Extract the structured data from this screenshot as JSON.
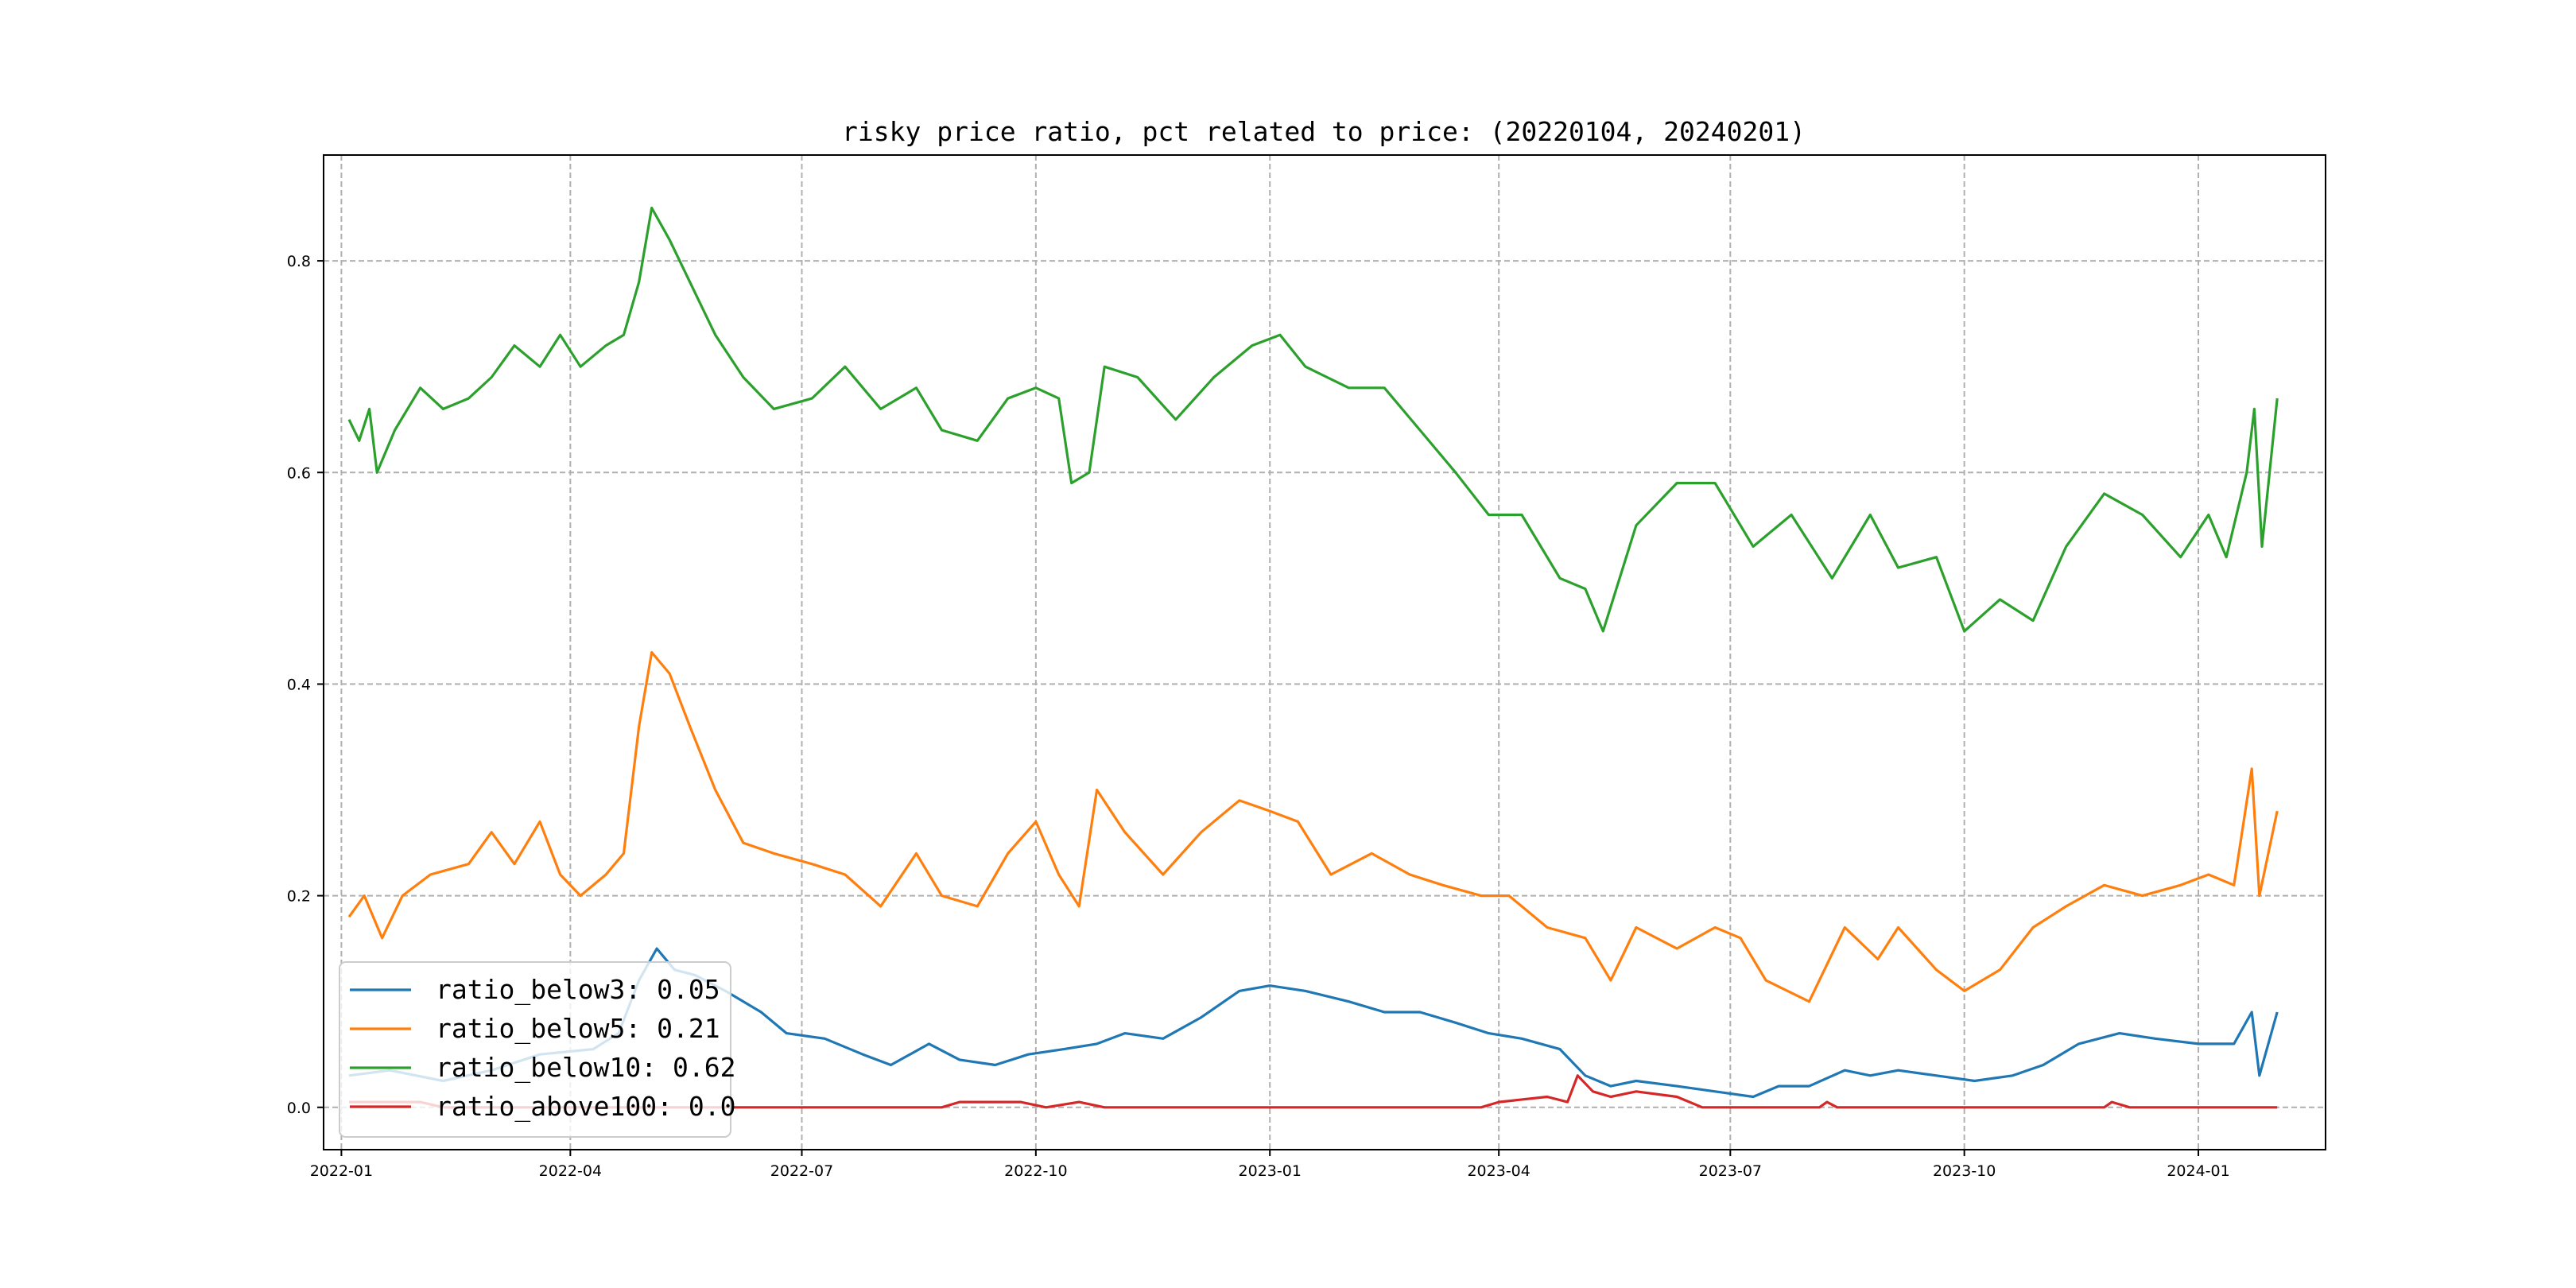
{
  "chart_data": {
    "type": "line",
    "title": "risky price ratio, pct related to price: (20220104, 20240201)",
    "xlabel": "",
    "ylabel": "",
    "x_range": [
      "2021-12-25",
      "2024-02-20"
    ],
    "ylim": [
      -0.04,
      0.9
    ],
    "x_ticks": [
      {
        "date": "2022-01-01",
        "label": "2022-01"
      },
      {
        "date": "2022-04-01",
        "label": "2022-04"
      },
      {
        "date": "2022-07-01",
        "label": "2022-07"
      },
      {
        "date": "2022-10-01",
        "label": "2022-10"
      },
      {
        "date": "2023-01-01",
        "label": "2023-01"
      },
      {
        "date": "2023-04-01",
        "label": "2023-04"
      },
      {
        "date": "2023-07-01",
        "label": "2023-07"
      },
      {
        "date": "2023-10-01",
        "label": "2023-10"
      },
      {
        "date": "2024-01-01",
        "label": "2024-01"
      }
    ],
    "y_ticks": [
      {
        "value": 0.0,
        "label": "0.0"
      },
      {
        "value": 0.2,
        "label": "0.2"
      },
      {
        "value": 0.4,
        "label": "0.4"
      },
      {
        "value": 0.6,
        "label": "0.6"
      },
      {
        "value": 0.8,
        "label": "0.8"
      }
    ],
    "grid": true,
    "legend_position": "bottom-left",
    "series": [
      {
        "name": "ratio_below3: 0.05",
        "color": "#1f77b4",
        "points": [
          [
            "2022-01-04",
            0.03
          ],
          [
            "2022-01-20",
            0.035
          ],
          [
            "2022-02-10",
            0.025
          ],
          [
            "2022-03-01",
            0.035
          ],
          [
            "2022-03-20",
            0.05
          ],
          [
            "2022-04-10",
            0.055
          ],
          [
            "2022-04-20",
            0.07
          ],
          [
            "2022-04-28",
            0.12
          ],
          [
            "2022-05-05",
            0.15
          ],
          [
            "2022-05-12",
            0.13
          ],
          [
            "2022-05-20",
            0.125
          ],
          [
            "2022-06-01",
            0.11
          ],
          [
            "2022-06-15",
            0.09
          ],
          [
            "2022-06-25",
            0.07
          ],
          [
            "2022-07-10",
            0.065
          ],
          [
            "2022-07-25",
            0.05
          ],
          [
            "2022-08-05",
            0.04
          ],
          [
            "2022-08-20",
            0.06
          ],
          [
            "2022-09-01",
            0.045
          ],
          [
            "2022-09-15",
            0.04
          ],
          [
            "2022-09-28",
            0.05
          ],
          [
            "2022-10-12",
            0.055
          ],
          [
            "2022-10-25",
            0.06
          ],
          [
            "2022-11-05",
            0.07
          ],
          [
            "2022-11-20",
            0.065
          ],
          [
            "2022-12-05",
            0.085
          ],
          [
            "2022-12-20",
            0.11
          ],
          [
            "2023-01-01",
            0.115
          ],
          [
            "2023-01-15",
            0.11
          ],
          [
            "2023-02-01",
            0.1
          ],
          [
            "2023-02-15",
            0.09
          ],
          [
            "2023-03-01",
            0.09
          ],
          [
            "2023-03-15",
            0.08
          ],
          [
            "2023-03-28",
            0.07
          ],
          [
            "2023-04-10",
            0.065
          ],
          [
            "2023-04-25",
            0.055
          ],
          [
            "2023-05-05",
            0.03
          ],
          [
            "2023-05-15",
            0.02
          ],
          [
            "2023-05-25",
            0.025
          ],
          [
            "2023-06-10",
            0.02
          ],
          [
            "2023-06-25",
            0.015
          ],
          [
            "2023-07-10",
            0.01
          ],
          [
            "2023-07-20",
            0.02
          ],
          [
            "2023-08-01",
            0.02
          ],
          [
            "2023-08-15",
            0.035
          ],
          [
            "2023-08-25",
            0.03
          ],
          [
            "2023-09-05",
            0.035
          ],
          [
            "2023-09-20",
            0.03
          ],
          [
            "2023-10-05",
            0.025
          ],
          [
            "2023-10-20",
            0.03
          ],
          [
            "2023-11-01",
            0.04
          ],
          [
            "2023-11-15",
            0.06
          ],
          [
            "2023-12-01",
            0.07
          ],
          [
            "2023-12-15",
            0.065
          ],
          [
            "2024-01-01",
            0.06
          ],
          [
            "2024-01-15",
            0.06
          ],
          [
            "2024-01-22",
            0.09
          ],
          [
            "2024-01-25",
            0.03
          ],
          [
            "2024-02-01",
            0.09
          ]
        ]
      },
      {
        "name": "ratio_below5: 0.21",
        "color": "#ff7f0e",
        "points": [
          [
            "2022-01-04",
            0.18
          ],
          [
            "2022-01-10",
            0.2
          ],
          [
            "2022-01-17",
            0.16
          ],
          [
            "2022-01-25",
            0.2
          ],
          [
            "2022-02-05",
            0.22
          ],
          [
            "2022-02-20",
            0.23
          ],
          [
            "2022-03-01",
            0.26
          ],
          [
            "2022-03-10",
            0.23
          ],
          [
            "2022-03-20",
            0.27
          ],
          [
            "2022-03-28",
            0.22
          ],
          [
            "2022-04-05",
            0.2
          ],
          [
            "2022-04-15",
            0.22
          ],
          [
            "2022-04-22",
            0.24
          ],
          [
            "2022-04-28",
            0.36
          ],
          [
            "2022-05-03",
            0.43
          ],
          [
            "2022-05-10",
            0.41
          ],
          [
            "2022-05-18",
            0.36
          ],
          [
            "2022-05-28",
            0.3
          ],
          [
            "2022-06-08",
            0.25
          ],
          [
            "2022-06-20",
            0.24
          ],
          [
            "2022-07-05",
            0.23
          ],
          [
            "2022-07-18",
            0.22
          ],
          [
            "2022-08-01",
            0.19
          ],
          [
            "2022-08-15",
            0.24
          ],
          [
            "2022-08-25",
            0.2
          ],
          [
            "2022-09-08",
            0.19
          ],
          [
            "2022-09-20",
            0.24
          ],
          [
            "2022-10-01",
            0.27
          ],
          [
            "2022-10-10",
            0.22
          ],
          [
            "2022-10-18",
            0.19
          ],
          [
            "2022-10-25",
            0.3
          ],
          [
            "2022-11-05",
            0.26
          ],
          [
            "2022-11-20",
            0.22
          ],
          [
            "2022-12-05",
            0.26
          ],
          [
            "2022-12-20",
            0.29
          ],
          [
            "2023-01-01",
            0.28
          ],
          [
            "2023-01-12",
            0.27
          ],
          [
            "2023-01-25",
            0.22
          ],
          [
            "2023-02-10",
            0.24
          ],
          [
            "2023-02-25",
            0.22
          ],
          [
            "2023-03-10",
            0.21
          ],
          [
            "2023-03-25",
            0.2
          ],
          [
            "2023-04-05",
            0.2
          ],
          [
            "2023-04-20",
            0.17
          ],
          [
            "2023-05-05",
            0.16
          ],
          [
            "2023-05-15",
            0.12
          ],
          [
            "2023-05-25",
            0.17
          ],
          [
            "2023-06-10",
            0.15
          ],
          [
            "2023-06-25",
            0.17
          ],
          [
            "2023-07-05",
            0.16
          ],
          [
            "2023-07-15",
            0.12
          ],
          [
            "2023-08-01",
            0.1
          ],
          [
            "2023-08-15",
            0.17
          ],
          [
            "2023-08-28",
            0.14
          ],
          [
            "2023-09-05",
            0.17
          ],
          [
            "2023-09-20",
            0.13
          ],
          [
            "2023-10-01",
            0.11
          ],
          [
            "2023-10-15",
            0.13
          ],
          [
            "2023-10-28",
            0.17
          ],
          [
            "2023-11-10",
            0.19
          ],
          [
            "2023-11-25",
            0.21
          ],
          [
            "2023-12-10",
            0.2
          ],
          [
            "2023-12-25",
            0.21
          ],
          [
            "2024-01-05",
            0.22
          ],
          [
            "2024-01-15",
            0.21
          ],
          [
            "2024-01-22",
            0.32
          ],
          [
            "2024-01-25",
            0.2
          ],
          [
            "2024-02-01",
            0.28
          ]
        ]
      },
      {
        "name": "ratio_below10: 0.62",
        "color": "#2ca02c",
        "points": [
          [
            "2022-01-04",
            0.65
          ],
          [
            "2022-01-08",
            0.63
          ],
          [
            "2022-01-12",
            0.66
          ],
          [
            "2022-01-15",
            0.6
          ],
          [
            "2022-01-22",
            0.64
          ],
          [
            "2022-02-01",
            0.68
          ],
          [
            "2022-02-10",
            0.66
          ],
          [
            "2022-02-20",
            0.67
          ],
          [
            "2022-03-01",
            0.69
          ],
          [
            "2022-03-10",
            0.72
          ],
          [
            "2022-03-20",
            0.7
          ],
          [
            "2022-03-28",
            0.73
          ],
          [
            "2022-04-05",
            0.7
          ],
          [
            "2022-04-15",
            0.72
          ],
          [
            "2022-04-22",
            0.73
          ],
          [
            "2022-04-28",
            0.78
          ],
          [
            "2022-05-03",
            0.85
          ],
          [
            "2022-05-10",
            0.82
          ],
          [
            "2022-05-18",
            0.78
          ],
          [
            "2022-05-28",
            0.73
          ],
          [
            "2022-06-08",
            0.69
          ],
          [
            "2022-06-20",
            0.66
          ],
          [
            "2022-07-05",
            0.67
          ],
          [
            "2022-07-18",
            0.7
          ],
          [
            "2022-08-01",
            0.66
          ],
          [
            "2022-08-15",
            0.68
          ],
          [
            "2022-08-25",
            0.64
          ],
          [
            "2022-09-08",
            0.63
          ],
          [
            "2022-09-20",
            0.67
          ],
          [
            "2022-10-01",
            0.68
          ],
          [
            "2022-10-10",
            0.67
          ],
          [
            "2022-10-15",
            0.59
          ],
          [
            "2022-10-22",
            0.6
          ],
          [
            "2022-10-28",
            0.7
          ],
          [
            "2022-11-10",
            0.69
          ],
          [
            "2022-11-25",
            0.65
          ],
          [
            "2022-12-10",
            0.69
          ],
          [
            "2022-12-25",
            0.72
          ],
          [
            "2023-01-05",
            0.73
          ],
          [
            "2023-01-15",
            0.7
          ],
          [
            "2023-02-01",
            0.68
          ],
          [
            "2023-02-15",
            0.68
          ],
          [
            "2023-03-01",
            0.64
          ],
          [
            "2023-03-15",
            0.6
          ],
          [
            "2023-03-28",
            0.56
          ],
          [
            "2023-04-10",
            0.56
          ],
          [
            "2023-04-25",
            0.5
          ],
          [
            "2023-05-05",
            0.49
          ],
          [
            "2023-05-12",
            0.45
          ],
          [
            "2023-05-25",
            0.55
          ],
          [
            "2023-06-10",
            0.59
          ],
          [
            "2023-06-25",
            0.59
          ],
          [
            "2023-07-10",
            0.53
          ],
          [
            "2023-07-25",
            0.56
          ],
          [
            "2023-08-10",
            0.5
          ],
          [
            "2023-08-25",
            0.56
          ],
          [
            "2023-09-05",
            0.51
          ],
          [
            "2023-09-20",
            0.52
          ],
          [
            "2023-10-01",
            0.45
          ],
          [
            "2023-10-15",
            0.48
          ],
          [
            "2023-10-28",
            0.46
          ],
          [
            "2023-11-10",
            0.53
          ],
          [
            "2023-11-25",
            0.58
          ],
          [
            "2023-12-10",
            0.56
          ],
          [
            "2023-12-25",
            0.52
          ],
          [
            "2024-01-05",
            0.56
          ],
          [
            "2024-01-12",
            0.52
          ],
          [
            "2024-01-20",
            0.6
          ],
          [
            "2024-01-23",
            0.66
          ],
          [
            "2024-01-26",
            0.53
          ],
          [
            "2024-02-01",
            0.67
          ]
        ]
      },
      {
        "name": "ratio_above100: 0.0",
        "color": "#d62728",
        "points": [
          [
            "2022-01-04",
            0.005
          ],
          [
            "2022-02-01",
            0.005
          ],
          [
            "2022-02-10",
            0.0
          ],
          [
            "2022-08-25",
            0.0
          ],
          [
            "2022-09-01",
            0.005
          ],
          [
            "2022-09-25",
            0.005
          ],
          [
            "2022-10-05",
            0.0
          ],
          [
            "2022-10-18",
            0.005
          ],
          [
            "2022-10-28",
            0.0
          ],
          [
            "2023-03-25",
            0.0
          ],
          [
            "2023-04-01",
            0.005
          ],
          [
            "2023-04-20",
            0.01
          ],
          [
            "2023-04-28",
            0.005
          ],
          [
            "2023-05-02",
            0.03
          ],
          [
            "2023-05-08",
            0.015
          ],
          [
            "2023-05-15",
            0.01
          ],
          [
            "2023-05-25",
            0.015
          ],
          [
            "2023-06-10",
            0.01
          ],
          [
            "2023-06-20",
            0.0
          ],
          [
            "2023-08-05",
            0.0
          ],
          [
            "2023-08-08",
            0.005
          ],
          [
            "2023-08-12",
            0.0
          ],
          [
            "2023-11-25",
            0.0
          ],
          [
            "2023-11-28",
            0.005
          ],
          [
            "2023-12-05",
            0.0
          ],
          [
            "2024-02-01",
            0.0
          ]
        ]
      }
    ]
  }
}
